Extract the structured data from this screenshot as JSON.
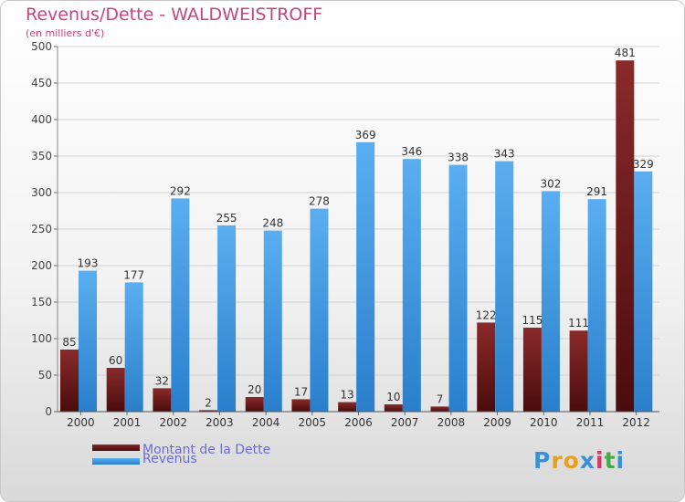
{
  "chart_data": {
    "type": "bar",
    "title": "Revenus/Dette - WALDWEISTROFF",
    "subtitle": "(en milliers d'€)",
    "categories": [
      "2000",
      "2001",
      "2002",
      "2003",
      "2004",
      "2005",
      "2006",
      "2007",
      "2008",
      "2009",
      "2010",
      "2011",
      "2012"
    ],
    "series": [
      {
        "name": "Montant de la Dette",
        "color": "#6b1a1a",
        "values": [
          85,
          60,
          32,
          2,
          20,
          17,
          13,
          10,
          7,
          122,
          115,
          111,
          481
        ]
      },
      {
        "name": "Revenus",
        "color": "#3d97df",
        "values": [
          193,
          177,
          292,
          255,
          248,
          278,
          369,
          346,
          338,
          343,
          302,
          291,
          329
        ]
      }
    ],
    "ylim": [
      0,
      500
    ],
    "yticks": [
      0,
      50,
      100,
      150,
      200,
      250,
      300,
      350,
      400,
      450,
      500
    ],
    "grid": true,
    "legend": "bottom-left"
  },
  "logo": {
    "text": "Proxiti",
    "letters": [
      "P",
      "r",
      "o",
      "x",
      "i",
      "t",
      "i"
    ],
    "colors": [
      "#3a8fd6",
      "#e8a020",
      "#e8a020",
      "#3a8fd6",
      "#d23a6a",
      "#4aa84a",
      "#3a8fd6"
    ]
  }
}
